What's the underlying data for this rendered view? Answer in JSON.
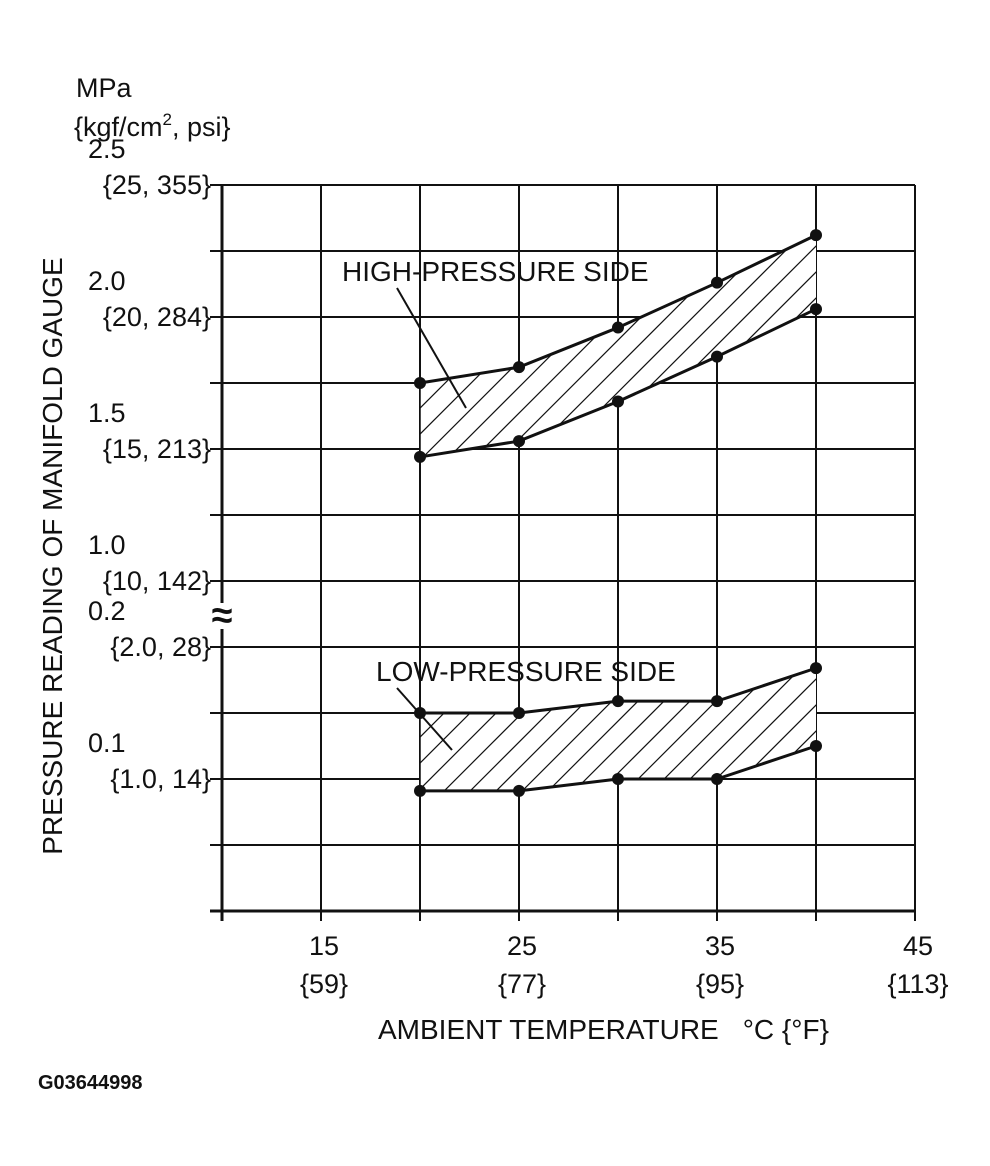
{
  "chart_data": {
    "type": "area",
    "y_unit_line1": "MPa",
    "y_unit_line2_prefix": "{kgf/cm",
    "y_unit_line2_sup": "2",
    "y_unit_line2_suffix": ", psi}",
    "ylabel": "PRESSURE READING OF MANIFOLD GAUGE",
    "xlabel": "AMBIENT TEMPERATURE",
    "xunit": "°C {°F}",
    "figure_id": "G03644998",
    "axis_break": "≈",
    "xlim": [
      10,
      45
    ],
    "grid": true,
    "x_ticks": [
      {
        "value": 15,
        "c": "15",
        "f": "{59}"
      },
      {
        "value": 25,
        "c": "25",
        "f": "{77}"
      },
      {
        "value": 35,
        "c": "35",
        "f": "{95}"
      },
      {
        "value": 45,
        "c": "45",
        "f": "{113}"
      }
    ],
    "y_ticks_upper": [
      {
        "value": 2.5,
        "mpa": "2.5",
        "alt": "{25, 355}"
      },
      {
        "value": 2.0,
        "mpa": "2.0",
        "alt": "{20, 284}"
      },
      {
        "value": 1.5,
        "mpa": "1.5",
        "alt": "{15, 213}"
      },
      {
        "value": 1.0,
        "mpa": "1.0",
        "alt": "{10, 142}"
      }
    ],
    "y_ticks_lower": [
      {
        "value": 0.2,
        "mpa": "0.2",
        "alt": "{2.0, 28}"
      },
      {
        "value": 0.1,
        "mpa": "0.1",
        "alt": "{1.0, 14}"
      }
    ],
    "series": [
      {
        "name": "HIGH-PRESSURE SIDE",
        "segment": "upper",
        "x": [
          20,
          25,
          30,
          35,
          40
        ],
        "upper": [
          1.75,
          1.81,
          1.96,
          2.13,
          2.31
        ],
        "lower": [
          1.47,
          1.53,
          1.68,
          1.85,
          2.03
        ]
      },
      {
        "name": "LOW-PRESSURE SIDE",
        "segment": "lower",
        "x": [
          20,
          25,
          30,
          35,
          40
        ],
        "upper": [
          0.15,
          0.15,
          0.159,
          0.159,
          0.184
        ],
        "lower": [
          0.091,
          0.091,
          0.1,
          0.1,
          0.125
        ]
      }
    ]
  }
}
